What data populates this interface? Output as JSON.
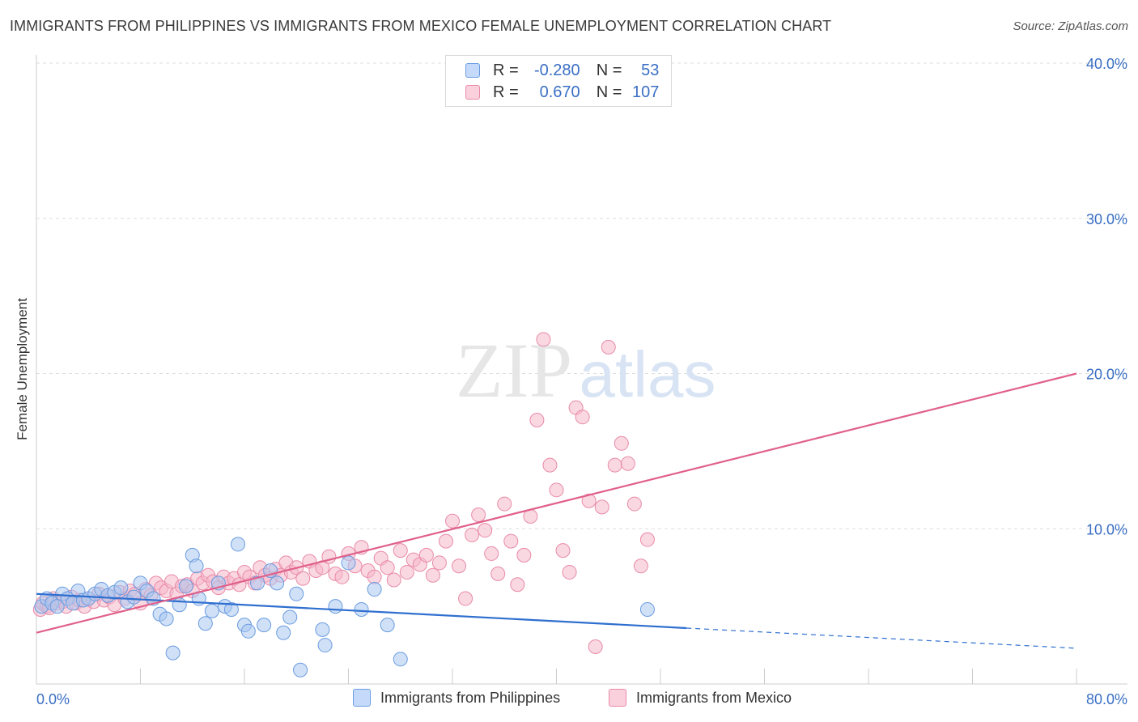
{
  "title": "IMMIGRANTS FROM PHILIPPINES VS IMMIGRANTS FROM MEXICO FEMALE UNEMPLOYMENT CORRELATION CHART",
  "source": "Source: ZipAtlas.com",
  "watermark": {
    "zip": "ZIP",
    "atlas": "atlas"
  },
  "colors": {
    "philippines_fill": "#a9c8f0",
    "philippines_stroke": "#6a9be0",
    "philippines_line": "#2f6fcf",
    "mexico_fill": "#f5b8cb",
    "mexico_stroke": "#e88aa8",
    "mexico_line": "#e0608a",
    "tick_label": "#3a6fc4",
    "grid": "#dddddd"
  },
  "legend_top": {
    "rows": [
      {
        "r_label": "R =",
        "r_value": "-0.280",
        "n_label": "N =",
        "n_value": "53"
      },
      {
        "r_label": "R =",
        "r_value": "0.670",
        "n_label": "N =",
        "n_value": "107"
      }
    ]
  },
  "chart_data": {
    "type": "scatter",
    "title": "IMMIGRANTS FROM PHILIPPINES VS IMMIGRANTS FROM MEXICO FEMALE UNEMPLOYMENT CORRELATION CHART",
    "xlabel": "",
    "ylabel": "Female Unemployment",
    "xlim": [
      0,
      80
    ],
    "ylim": [
      0,
      40
    ],
    "x_tick_labels": [
      "0.0%",
      "80.0%"
    ],
    "y_ticks": [
      10,
      20,
      30,
      40
    ],
    "y_tick_labels": [
      "10.0%",
      "20.0%",
      "30.0%",
      "40.0%"
    ],
    "grid": true,
    "legend_position": "bottom",
    "series": [
      {
        "name": "Immigrants from Philippines",
        "r": -0.28,
        "n": 53,
        "trend": {
          "x0": 0,
          "y0": 5.8,
          "x1": 50,
          "y1": 3.6,
          "dash_to_x": 80,
          "dash_to_y": 2.3
        },
        "points": [
          [
            0.4,
            5.0
          ],
          [
            0.8,
            5.5
          ],
          [
            1.2,
            5.2
          ],
          [
            1.6,
            5.0
          ],
          [
            2.0,
            5.8
          ],
          [
            2.4,
            5.5
          ],
          [
            2.8,
            5.2
          ],
          [
            3.2,
            6.0
          ],
          [
            3.6,
            5.4
          ],
          [
            4.0,
            5.5
          ],
          [
            4.5,
            5.8
          ],
          [
            5.0,
            6.1
          ],
          [
            5.5,
            5.7
          ],
          [
            6.0,
            5.9
          ],
          [
            6.5,
            6.2
          ],
          [
            7.0,
            5.3
          ],
          [
            7.5,
            5.6
          ],
          [
            8.0,
            6.5
          ],
          [
            8.5,
            6.0
          ],
          [
            9.0,
            5.5
          ],
          [
            9.5,
            4.5
          ],
          [
            10.0,
            4.2
          ],
          [
            10.5,
            2.0
          ],
          [
            11.0,
            5.1
          ],
          [
            11.5,
            6.3
          ],
          [
            12.0,
            8.3
          ],
          [
            12.3,
            7.6
          ],
          [
            12.5,
            5.5
          ],
          [
            13.0,
            3.9
          ],
          [
            13.5,
            4.7
          ],
          [
            14.0,
            6.5
          ],
          [
            14.5,
            5.0
          ],
          [
            15.0,
            4.8
          ],
          [
            15.5,
            9.0
          ],
          [
            16.0,
            3.8
          ],
          [
            16.3,
            3.4
          ],
          [
            17.0,
            6.5
          ],
          [
            17.5,
            3.8
          ],
          [
            18.0,
            7.3
          ],
          [
            18.5,
            6.5
          ],
          [
            19.0,
            3.3
          ],
          [
            19.5,
            4.3
          ],
          [
            20.0,
            5.8
          ],
          [
            20.3,
            0.9
          ],
          [
            22.0,
            3.5
          ],
          [
            22.2,
            2.5
          ],
          [
            23.0,
            5.0
          ],
          [
            24.0,
            7.8
          ],
          [
            25.0,
            4.8
          ],
          [
            26.0,
            6.1
          ],
          [
            27.0,
            3.8
          ],
          [
            28.0,
            1.6
          ],
          [
            47.0,
            4.8
          ]
        ]
      },
      {
        "name": "Immigrants from Mexico",
        "r": 0.67,
        "n": 107,
        "trend": {
          "x0": 0,
          "y0": 3.3,
          "x1": 80,
          "y1": 20.0
        },
        "points": [
          [
            0.3,
            4.8
          ],
          [
            0.5,
            5.2
          ],
          [
            0.8,
            5.0
          ],
          [
            1.0,
            4.9
          ],
          [
            1.3,
            5.5
          ],
          [
            1.6,
            5.2
          ],
          [
            2.0,
            5.3
          ],
          [
            2.3,
            5.0
          ],
          [
            2.7,
            5.6
          ],
          [
            3.0,
            5.2
          ],
          [
            3.3,
            5.4
          ],
          [
            3.7,
            5.0
          ],
          [
            4.0,
            5.5
          ],
          [
            4.4,
            5.3
          ],
          [
            4.8,
            5.8
          ],
          [
            5.2,
            5.4
          ],
          [
            5.6,
            5.6
          ],
          [
            6.0,
            5.1
          ],
          [
            6.4,
            5.9
          ],
          [
            6.8,
            5.5
          ],
          [
            7.2,
            6.0
          ],
          [
            7.6,
            5.8
          ],
          [
            8.0,
            5.2
          ],
          [
            8.4,
            6.1
          ],
          [
            8.8,
            5.7
          ],
          [
            9.2,
            6.5
          ],
          [
            9.6,
            6.2
          ],
          [
            10.0,
            6.0
          ],
          [
            10.4,
            6.6
          ],
          [
            10.8,
            5.8
          ],
          [
            11.2,
            6.3
          ],
          [
            11.6,
            6.4
          ],
          [
            12.0,
            6.0
          ],
          [
            12.4,
            6.8
          ],
          [
            12.8,
            6.5
          ],
          [
            13.2,
            7.0
          ],
          [
            13.6,
            6.6
          ],
          [
            14.0,
            6.2
          ],
          [
            14.4,
            6.9
          ],
          [
            14.8,
            6.5
          ],
          [
            15.2,
            6.8
          ],
          [
            15.6,
            6.4
          ],
          [
            16.0,
            7.2
          ],
          [
            16.4,
            6.9
          ],
          [
            16.8,
            6.5
          ],
          [
            17.2,
            7.5
          ],
          [
            17.6,
            7.0
          ],
          [
            18.0,
            6.8
          ],
          [
            18.4,
            7.4
          ],
          [
            18.8,
            7.0
          ],
          [
            19.2,
            7.8
          ],
          [
            19.6,
            7.2
          ],
          [
            20.0,
            7.5
          ],
          [
            20.5,
            6.8
          ],
          [
            21.0,
            7.9
          ],
          [
            21.5,
            7.3
          ],
          [
            22.0,
            7.5
          ],
          [
            22.5,
            8.2
          ],
          [
            23.0,
            7.1
          ],
          [
            23.5,
            6.9
          ],
          [
            24.0,
            8.4
          ],
          [
            24.5,
            7.6
          ],
          [
            25.0,
            8.8
          ],
          [
            25.5,
            7.3
          ],
          [
            26.0,
            6.9
          ],
          [
            26.5,
            8.1
          ],
          [
            27.0,
            7.5
          ],
          [
            27.5,
            6.7
          ],
          [
            28.0,
            8.6
          ],
          [
            28.5,
            7.2
          ],
          [
            29.0,
            8.0
          ],
          [
            29.5,
            7.7
          ],
          [
            30.0,
            8.3
          ],
          [
            30.5,
            7.0
          ],
          [
            31.0,
            7.8
          ],
          [
            31.5,
            9.2
          ],
          [
            32.0,
            10.5
          ],
          [
            32.5,
            7.6
          ],
          [
            33.0,
            5.5
          ],
          [
            33.5,
            9.6
          ],
          [
            34.0,
            10.9
          ],
          [
            34.5,
            9.9
          ],
          [
            35.0,
            8.4
          ],
          [
            35.5,
            7.1
          ],
          [
            36.0,
            11.6
          ],
          [
            36.5,
            9.2
          ],
          [
            37.0,
            6.4
          ],
          [
            37.5,
            8.3
          ],
          [
            38.0,
            10.8
          ],
          [
            38.5,
            17.0
          ],
          [
            39.0,
            22.2
          ],
          [
            39.5,
            14.1
          ],
          [
            40.0,
            12.5
          ],
          [
            40.5,
            8.6
          ],
          [
            41.0,
            7.2
          ],
          [
            41.5,
            17.8
          ],
          [
            42.0,
            17.2
          ],
          [
            42.5,
            11.8
          ],
          [
            43.0,
            2.4
          ],
          [
            43.5,
            11.4
          ],
          [
            44.0,
            21.7
          ],
          [
            44.5,
            14.1
          ],
          [
            45.0,
            15.5
          ],
          [
            45.5,
            14.2
          ],
          [
            46.0,
            11.6
          ],
          [
            46.5,
            7.6
          ],
          [
            47.0,
            9.3
          ]
        ]
      }
    ]
  },
  "legend_bottom": {
    "items": [
      "Immigrants from Philippines",
      "Immigrants from Mexico"
    ]
  }
}
